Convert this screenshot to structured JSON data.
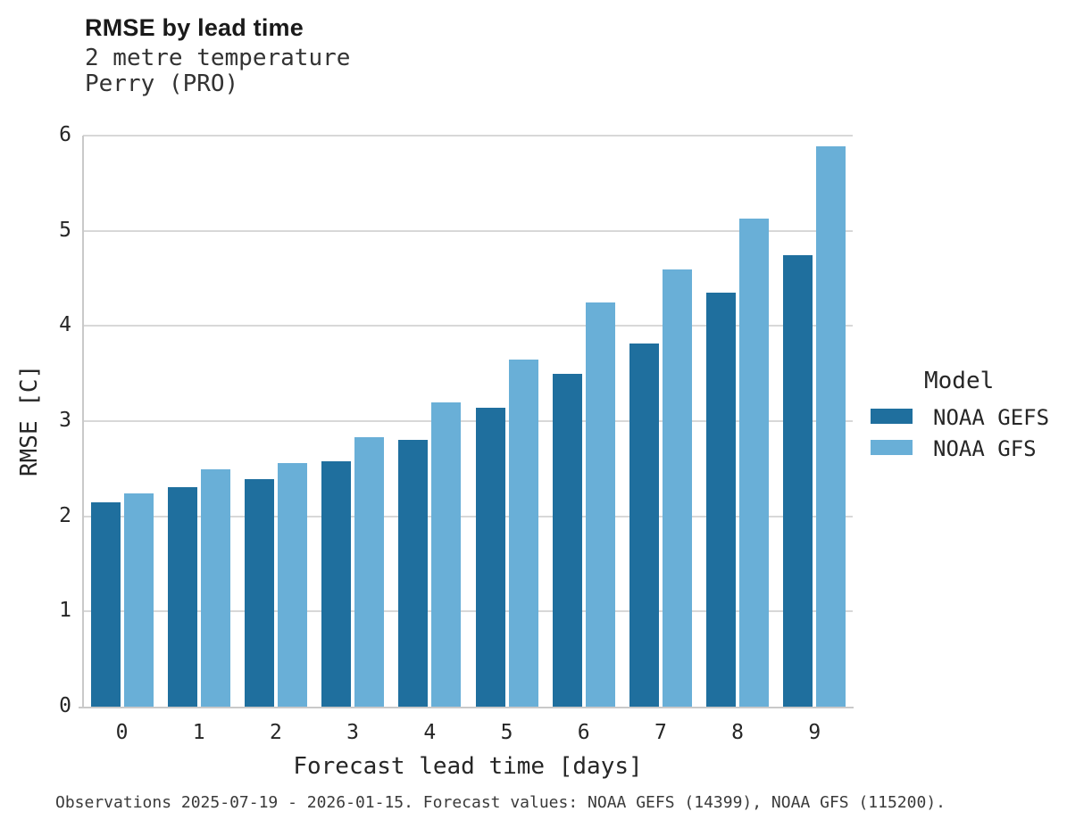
{
  "header": {
    "title": "RMSE by lead time",
    "subtitle_line1": "2 metre temperature",
    "subtitle_line2": "Perry (PRO)"
  },
  "chart_data": {
    "type": "bar",
    "title": "RMSE by lead time",
    "subtitle": [
      "2 metre temperature",
      "Perry (PRO)"
    ],
    "xlabel": "Forecast lead time [days]",
    "ylabel": "RMSE [C]",
    "categories": [
      "0",
      "1",
      "2",
      "3",
      "4",
      "5",
      "6",
      "7",
      "8",
      "9"
    ],
    "series": [
      {
        "name": "NOAA GEFS",
        "color": "#1f6f9e",
        "values": [
          2.15,
          2.31,
          2.39,
          2.58,
          2.8,
          3.14,
          3.5,
          3.82,
          4.35,
          4.74
        ]
      },
      {
        "name": "NOAA GFS",
        "color": "#69afd7",
        "values": [
          2.24,
          2.49,
          2.56,
          2.83,
          3.2,
          3.65,
          4.25,
          4.59,
          5.13,
          5.89
        ]
      }
    ],
    "ylim": [
      0,
      6
    ],
    "yticks": [
      0,
      1,
      2,
      3,
      4,
      5,
      6
    ],
    "grid": true,
    "legend_position": "right"
  },
  "legend": {
    "title": "Model",
    "entries": [
      {
        "label": "NOAA GEFS",
        "color": "#1f6f9e"
      },
      {
        "label": "NOAA GFS",
        "color": "#69afd7"
      }
    ]
  },
  "axes": {
    "x_title": "Forecast lead time [days]",
    "y_title": "RMSE [C]"
  },
  "footer": {
    "note": "Observations 2025-07-19 - 2026-01-15. Forecast values: NOAA GEFS (14399), NOAA GFS (115200)."
  },
  "colors": {
    "gefs": "#1f6f9e",
    "gfs": "#69afd7",
    "gridline": "#d8d8d8",
    "axis": "#c9c9c9"
  }
}
